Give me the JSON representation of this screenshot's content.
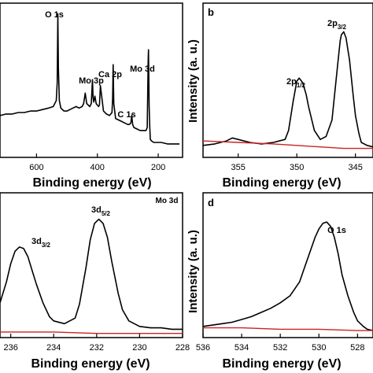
{
  "chart_data": [
    {
      "panel": "a",
      "type": "line",
      "title": "",
      "xlabel": "Binding energy (eV)",
      "ylabel": "",
      "xlim": [
        720,
        120
      ],
      "ylim": [
        0,
        100
      ],
      "x_reversed": true,
      "xticks": [
        600,
        400,
        200
      ],
      "grid": false,
      "series": [
        {
          "color": "#000000",
          "x": [
            720,
            700,
            680,
            660,
            640,
            620,
            600,
            580,
            560,
            545,
            535,
            532,
            530,
            528,
            525,
            520,
            510,
            500,
            490,
            480,
            470,
            460,
            450,
            445,
            440,
            435,
            430,
            425,
            420,
            416,
            414,
            412,
            408,
            404,
            400,
            396,
            393,
            390,
            380,
            370,
            360,
            352,
            350,
            348,
            346,
            340,
            330,
            320,
            310,
            300,
            295,
            290,
            287,
            284,
            280,
            270,
            260,
            250,
            240,
            236,
            233,
            232,
            230,
            228,
            226,
            222,
            215,
            205,
            190,
            170,
            150,
            130
          ],
          "y": [
            28,
            29,
            29,
            30,
            30,
            31,
            31,
            32,
            33,
            34,
            38,
            50,
            96,
            60,
            38,
            33,
            31,
            31,
            32,
            33,
            34,
            33,
            34,
            36,
            43,
            36,
            35,
            34,
            36,
            52,
            40,
            37,
            41,
            36,
            35,
            34,
            35,
            48,
            31,
            29,
            28,
            30,
            39,
            62,
            36,
            26,
            25,
            24,
            23,
            22,
            22,
            23,
            28,
            22,
            20,
            19,
            18,
            18,
            18,
            20,
            65,
            72,
            35,
            22,
            12,
            11,
            10,
            10,
            10,
            9,
            9,
            9
          ]
        }
      ],
      "annotations": [
        "O 1s",
        "Mo 3p",
        "Ca 2p",
        "C 1s",
        "Mo 3d"
      ]
    },
    {
      "panel": "b",
      "type": "line",
      "title": "b",
      "xlabel": "Binding energy (eV)",
      "ylabel": "Intensity (a. u.)",
      "xlim": [
        358,
        343.5
      ],
      "ylim": [
        0,
        100
      ],
      "x_reversed": true,
      "xticks": [
        355,
        350,
        345
      ],
      "grid": false,
      "series": [
        {
          "color": "#000000",
          "x": [
            358,
            357,
            356,
            355.5,
            355,
            354,
            353,
            352,
            351,
            350.7,
            350.3,
            350,
            349.8,
            349.5,
            349.2,
            349,
            348.5,
            348,
            347.5,
            347,
            346.8,
            346.5,
            346.3,
            346.2,
            346,
            345.8,
            345.5,
            345.2,
            345,
            344.7,
            344.5,
            344,
            343.5
          ],
          "y": [
            8,
            9,
            11,
            13,
            12,
            10,
            9,
            10,
            12,
            18,
            38,
            51,
            53,
            50,
            42,
            34,
            18,
            12,
            14,
            25,
            40,
            63,
            78,
            82,
            84,
            80,
            65,
            42,
            28,
            16,
            10,
            8,
            7
          ]
        },
        {
          "color": "#cc2222",
          "x": [
            358,
            355,
            352,
            350,
            348,
            346,
            344,
            343.5
          ],
          "y": [
            11,
            10,
            9,
            8,
            7,
            6,
            6,
            6
          ]
        }
      ],
      "annotations": [
        "2p1/2",
        "2p3/2"
      ]
    },
    {
      "panel": "c",
      "type": "line",
      "title": "Mo 3d",
      "xlabel": "Binding energy (eV)",
      "ylabel": "",
      "xlim": [
        236.5,
        228
      ],
      "ylim": [
        0,
        100
      ],
      "x_reversed": true,
      "xticks": [
        236,
        234,
        232,
        230,
        228
      ],
      "grid": false,
      "series": [
        {
          "color": "#000000",
          "x": [
            236.5,
            236.2,
            236,
            235.8,
            235.6,
            235.4,
            235.2,
            235,
            234.8,
            234.5,
            234.2,
            234,
            233.5,
            233,
            232.8,
            232.5,
            232.3,
            232.1,
            231.9,
            231.7,
            231.5,
            231.3,
            231,
            230.8,
            230.5,
            230,
            229.5,
            229,
            228.5,
            228
          ],
          "y": [
            25,
            40,
            53,
            62,
            65,
            64,
            58,
            48,
            38,
            25,
            15,
            12,
            10,
            14,
            24,
            50,
            70,
            82,
            85,
            82,
            72,
            55,
            32,
            20,
            12,
            8,
            7,
            7,
            6,
            6
          ]
        },
        {
          "color": "#cc2222",
          "x": [
            236.5,
            234,
            232,
            230,
            228
          ],
          "y": [
            4,
            4,
            3,
            3,
            3
          ]
        }
      ],
      "annotations": [
        "3d3/2",
        "3d5/2"
      ]
    },
    {
      "panel": "d",
      "type": "line",
      "title": "d",
      "xlabel": "Binding energy (eV)",
      "ylabel": "Intensity (a. u.)",
      "xlim": [
        536,
        527.2
      ],
      "ylim": [
        0,
        100
      ],
      "x_reversed": true,
      "xticks": [
        536,
        534,
        532,
        530,
        528
      ],
      "grid": false,
      "series": [
        {
          "color": "#000000",
          "x": [
            536,
            535.5,
            535,
            534.5,
            534,
            533.5,
            533,
            532.5,
            532,
            531.5,
            531,
            530.8,
            530.5,
            530.2,
            530,
            529.8,
            529.6,
            529.4,
            529.2,
            529,
            528.8,
            528.5,
            528.2,
            528,
            527.7,
            527.5,
            527.2
          ],
          "y": [
            8,
            9,
            10,
            11,
            13,
            15,
            18,
            21,
            25,
            30,
            40,
            48,
            60,
            72,
            78,
            82,
            83,
            80,
            72,
            60,
            45,
            30,
            18,
            12,
            8,
            6,
            5
          ]
        },
        {
          "color": "#cc2222",
          "x": [
            536,
            534,
            532,
            530,
            528,
            527.2
          ],
          "y": [
            7,
            7,
            6,
            6,
            5,
            5
          ]
        }
      ],
      "annotations": [
        "O 1s"
      ]
    }
  ],
  "labels": {
    "a_xlabel": "Binding energy (eV)",
    "b_xlabel": "Binding energy (eV)",
    "c_xlabel": "Binding energy (eV)",
    "d_xlabel": "Binding energy (eV)",
    "b_ylabel": "Intensity (a. u.)",
    "d_ylabel": "Intensity (a. u.)",
    "b_letter": "b",
    "d_letter": "d",
    "c_title": "Mo 3d",
    "a_ann": {
      "o1s": "O 1s",
      "mo3p": "Mo 3p",
      "ca2p": "Ca 2p",
      "c1s": "C 1s",
      "mo3d": "Mo 3d"
    },
    "b_ann": {
      "p12_main": "2p",
      "p12_sub": "1/2",
      "p32_main": "2p",
      "p32_sub": "3/2"
    },
    "c_ann": {
      "d32_main": "3d",
      "d32_sub": "3/2",
      "d52_main": "3d",
      "d52_sub": "5/2"
    },
    "d_ann": {
      "o1s": "O 1s"
    }
  }
}
